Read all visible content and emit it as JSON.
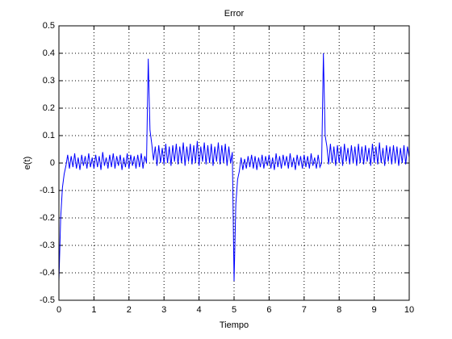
{
  "chart_data": {
    "type": "line",
    "title": "Error",
    "x_label": "Tiempo",
    "y_label": "e(t)",
    "xlim": [
      0,
      10
    ],
    "ylim": [
      -0.5,
      0.5
    ],
    "xticks": [
      0,
      1,
      2,
      3,
      4,
      5,
      6,
      7,
      8,
      9,
      10
    ],
    "yticks": [
      -0.5,
      -0.4,
      -0.3,
      -0.2,
      -0.1,
      0,
      0.1,
      0.2,
      0.3,
      0.4,
      0.5
    ],
    "grid": true,
    "x": [
      0,
      0.05,
      0.1,
      0.15,
      0.2,
      0.25,
      0.3,
      0.35,
      0.4,
      0.45,
      0.5,
      0.55,
      0.6,
      0.65,
      0.7,
      0.75,
      0.8,
      0.85,
      0.9,
      0.95,
      1,
      1.05,
      1.1,
      1.15,
      1.2,
      1.25,
      1.3,
      1.35,
      1.4,
      1.45,
      1.5,
      1.55,
      1.6,
      1.65,
      1.7,
      1.75,
      1.8,
      1.85,
      1.9,
      1.95,
      2,
      2.05,
      2.1,
      2.15,
      2.2,
      2.25,
      2.3,
      2.35,
      2.4,
      2.45,
      2.5,
      2.55,
      2.6,
      2.65,
      2.7,
      2.75,
      2.8,
      2.85,
      2.9,
      2.95,
      3,
      3.05,
      3.1,
      3.15,
      3.2,
      3.25,
      3.3,
      3.35,
      3.4,
      3.45,
      3.5,
      3.55,
      3.6,
      3.65,
      3.7,
      3.75,
      3.8,
      3.85,
      3.9,
      3.95,
      4,
      4.05,
      4.1,
      4.15,
      4.2,
      4.25,
      4.3,
      4.35,
      4.4,
      4.45,
      4.5,
      4.55,
      4.6,
      4.65,
      4.7,
      4.75,
      4.8,
      4.85,
      4.9,
      4.95,
      5,
      5.05,
      5.1,
      5.15,
      5.2,
      5.25,
      5.3,
      5.35,
      5.4,
      5.45,
      5.5,
      5.55,
      5.6,
      5.65,
      5.7,
      5.75,
      5.8,
      5.85,
      5.9,
      5.95,
      6,
      6.05,
      6.1,
      6.15,
      6.2,
      6.25,
      6.3,
      6.35,
      6.4,
      6.45,
      6.5,
      6.55,
      6.6,
      6.65,
      6.7,
      6.75,
      6.8,
      6.85,
      6.9,
      6.95,
      7,
      7.05,
      7.1,
      7.15,
      7.2,
      7.25,
      7.3,
      7.35,
      7.4,
      7.45,
      7.5,
      7.55,
      7.6,
      7.65,
      7.7,
      7.75,
      7.8,
      7.85,
      7.9,
      7.95,
      8,
      8.05,
      8.1,
      8.15,
      8.2,
      8.25,
      8.3,
      8.35,
      8.4,
      8.45,
      8.5,
      8.55,
      8.6,
      8.65,
      8.7,
      8.75,
      8.8,
      8.85,
      8.9,
      8.95,
      9,
      9.05,
      9.1,
      9.15,
      9.2,
      9.25,
      9.3,
      9.35,
      9.4,
      9.45,
      9.5,
      9.55,
      9.6,
      9.65,
      9.7,
      9.75,
      9.8,
      9.85,
      9.9,
      9.95,
      10
    ],
    "series": [
      {
        "color": "#0000ff",
        "values": [
          -0.43,
          -0.2,
          -0.09,
          -0.04,
          -0.01,
          0.03,
          -0.02,
          0.025,
          -0.015,
          0.035,
          -0.02,
          0.02,
          -0.025,
          0.03,
          -0.01,
          0.025,
          -0.02,
          0.035,
          -0.015,
          0.02,
          -0.02,
          0.03,
          -0.015,
          0.025,
          -0.025,
          0.04,
          -0.01,
          0.02,
          -0.02,
          0.03,
          -0.015,
          0.035,
          -0.02,
          0.025,
          -0.01,
          0.03,
          -0.025,
          0.02,
          -0.015,
          0.035,
          -0.02,
          0.03,
          -0.01,
          0.025,
          -0.02,
          0.03,
          -0.015,
          0.035,
          -0.02,
          0.025,
          0.0,
          0.38,
          0.12,
          0.07,
          0.01,
          0.06,
          -0.01,
          0.065,
          0.0,
          0.055,
          -0.005,
          0.07,
          0.0,
          0.06,
          -0.01,
          0.065,
          0.005,
          0.07,
          -0.005,
          0.06,
          0.0,
          0.075,
          -0.01,
          0.06,
          0.005,
          0.07,
          -0.005,
          0.065,
          0.0,
          0.08,
          -0.01,
          0.06,
          0.005,
          0.075,
          -0.005,
          0.065,
          0.0,
          0.07,
          -0.01,
          0.06,
          0.005,
          0.075,
          -0.005,
          0.065,
          0.0,
          0.07,
          -0.01,
          0.06,
          0.0,
          0.04,
          -0.43,
          -0.15,
          -0.06,
          -0.03,
          0.02,
          -0.025,
          0.015,
          -0.02,
          0.025,
          -0.015,
          0.03,
          -0.02,
          0.025,
          -0.025,
          0.02,
          -0.015,
          0.03,
          -0.02,
          0.025,
          -0.01,
          0.03,
          -0.02,
          0.02,
          -0.025,
          0.035,
          -0.015,
          0.025,
          -0.02,
          0.03,
          -0.01,
          0.025,
          -0.02,
          0.035,
          -0.015,
          0.02,
          -0.025,
          0.03,
          -0.01,
          0.025,
          -0.02,
          0.03,
          -0.015,
          0.025,
          -0.02,
          0.035,
          -0.01,
          0.02,
          -0.02,
          0.03,
          -0.015,
          0.0,
          0.4,
          0.1,
          0.06,
          -0.005,
          0.07,
          0.0,
          0.06,
          -0.01,
          0.065,
          0.0,
          0.06,
          -0.01,
          0.07,
          0.005,
          0.055,
          -0.005,
          0.065,
          0.0,
          0.06,
          -0.01,
          0.07,
          0.0,
          0.06,
          -0.005,
          0.065,
          0.005,
          0.055,
          -0.01,
          0.07,
          0.0,
          0.06,
          -0.005,
          0.075,
          0.0,
          0.055,
          -0.01,
          0.065,
          0.005,
          0.06,
          -0.005,
          0.065,
          0.0,
          0.06,
          -0.01,
          0.055,
          0.0,
          0.065,
          -0.005,
          0.06,
          0.02
        ]
      }
    ]
  }
}
